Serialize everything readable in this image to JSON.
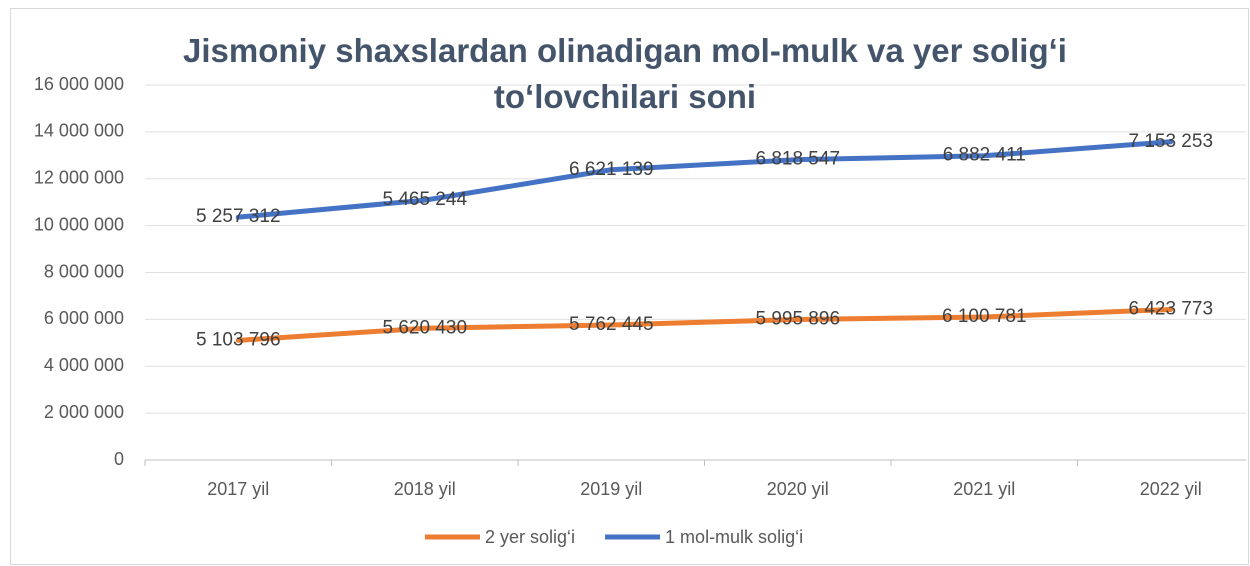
{
  "chart_data": {
    "type": "stacked-line",
    "title": "Jismoniy shaxslardan olinadigan mol-mulk va yer solig‘i to‘lovchilari soni",
    "categories": [
      "2017 yil",
      "2018 yil",
      "2019 yil",
      "2020 yil",
      "2021 yil",
      "2022 yil"
    ],
    "series": [
      {
        "name": "2 yer solig‘i",
        "color": "#ed7d31",
        "values": [
          5103796,
          5620430,
          5762445,
          5995896,
          6100781,
          6423773
        ],
        "value_labels": [
          "5 103 796",
          "5 620 430",
          "5 762 445",
          "5 995 896",
          "6 100 781",
          "6 423 773"
        ]
      },
      {
        "name": "1 mol-mulk solig‘i",
        "color": "#4472c4",
        "values": [
          5257312,
          5465244,
          6621139,
          6818547,
          6882411,
          7153253
        ],
        "value_labels": [
          "5 257 312",
          "5 465 244",
          "6 621 139",
          "6 818 547",
          "6 882 411",
          "7 153 253"
        ]
      }
    ],
    "ylim": [
      0,
      16000000
    ],
    "yticks": [
      0,
      {
        "value": 2000000,
        "label": "2 000 000"
      },
      {
        "value": 4000000,
        "label": "4 000 000"
      },
      {
        "value": 6000000,
        "label": "6 000 000"
      },
      {
        "value": 8000000,
        "label": "8 000 000"
      },
      {
        "value": 10000000,
        "label": "10 000 000"
      },
      {
        "value": 12000000,
        "label": "12 000 000"
      },
      {
        "value": 14000000,
        "label": "14 000 000"
      },
      {
        "value": 16000000,
        "label": "16 000 000"
      }
    ],
    "grid": true,
    "legend": "bottom"
  }
}
